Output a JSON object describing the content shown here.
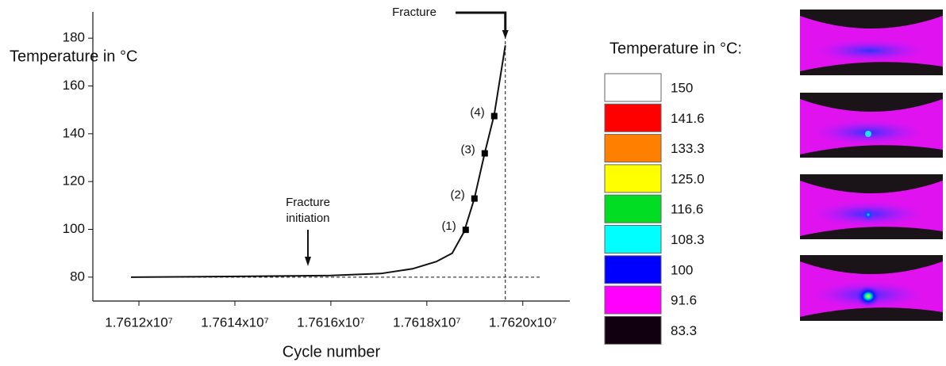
{
  "chart_data": {
    "type": "line",
    "y_label": "Temperature in °C",
    "x_label": "Cycle number",
    "xlim": [
      17611040,
      17620980
    ],
    "ylim": [
      70,
      191
    ],
    "xticks": [
      {
        "value": 17612000,
        "label": "1.7612x10⁷"
      },
      {
        "value": 17614000,
        "label": "1.7614x10⁷"
      },
      {
        "value": 17616000,
        "label": "1.7616x10⁷"
      },
      {
        "value": 17618000,
        "label": "1.7618x10⁷"
      },
      {
        "value": 17620000,
        "label": "1.7620x10⁷"
      }
    ],
    "yticks": [
      80,
      100,
      120,
      140,
      160,
      180
    ],
    "series": [
      {
        "color": "#111111",
        "x": [
          17611835,
          17614066,
          17616000,
          17617041,
          17617702,
          17618198,
          17618529,
          17618777,
          17618992,
          17619207,
          17619405,
          17619636
        ],
        "values": [
          80,
          80.3,
          80.7,
          81.5,
          83.5,
          86.5,
          90,
          99,
          113,
          132,
          148,
          177
        ]
      }
    ],
    "markers": {
      "color": "#000000",
      "x": [
        17618810,
        17618992,
        17619207,
        17619405
      ],
      "values": [
        99.8,
        112.9,
        131.8,
        147.4
      ],
      "labels": [
        "(1)",
        "(2)",
        "(3)",
        "(4)"
      ]
    },
    "reference_lines": {
      "y": 80,
      "x": 17619636
    },
    "annotations": {
      "fracture": "Fracture",
      "initiation": [
        "Fracture",
        "initiation"
      ]
    },
    "color_scale": {
      "title": "Temperature in °C:",
      "colors": [
        "#ffffff",
        "#ff0000",
        "#ff8000",
        "#ffff00",
        "#00dd22",
        "#00ffff",
        "#0000ff",
        "#ff00ff",
        "#100010"
      ],
      "labels": [
        null,
        "150",
        "141.6",
        "133.3",
        "125.0",
        "116.6",
        "108.3",
        "100",
        "91.6",
        "83.3"
      ]
    }
  }
}
